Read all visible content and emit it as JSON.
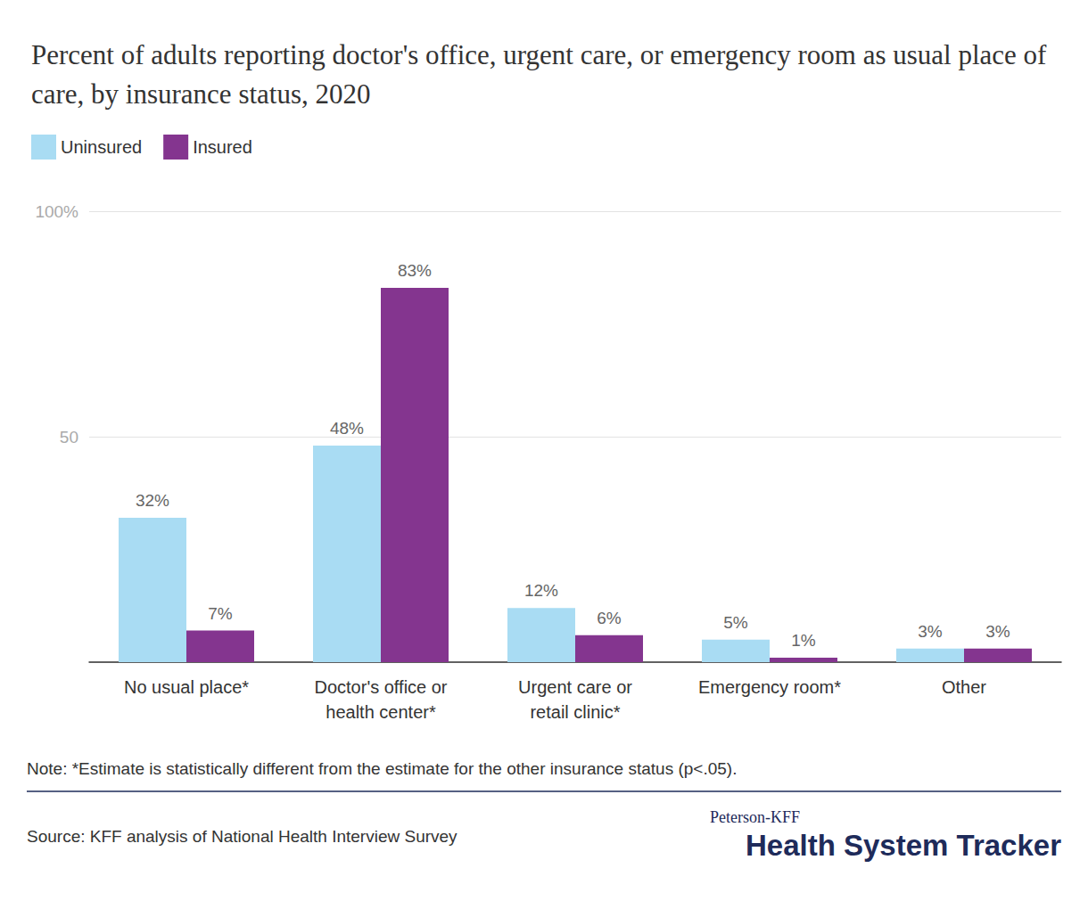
{
  "chart_data": {
    "type": "bar",
    "title": "Percent of adults reporting doctor's office, urgent care, or emergency room as usual place of care, by insurance status, 2020",
    "categories": [
      "No usual place*",
      "Doctor's office or\nhealth center*",
      "Urgent care or\nretail clinic*",
      "Emergency room*",
      "Other"
    ],
    "series": [
      {
        "name": "Uninsured",
        "color": "#a9dcf3",
        "values": [
          32,
          48,
          12,
          5,
          3
        ],
        "value_labels": [
          "32%",
          "48%",
          "12%",
          "5%",
          "3%"
        ]
      },
      {
        "name": "Insured",
        "color": "#84358f",
        "values": [
          7,
          83,
          6,
          1,
          3
        ],
        "value_labels": [
          "7%",
          "83%",
          "6%",
          "1%",
          "3%"
        ]
      }
    ],
    "ylim": [
      0,
      100
    ],
    "yticks": [
      50,
      {
        "value": 100,
        "label": "100%"
      }
    ],
    "grid": true,
    "legend": "top-left",
    "data_labels": true,
    "note": "Note: *Estimate is statistically different from the estimate for the other insurance status (p<.05).",
    "source": "Source: KFF analysis of National Health Interview Survey",
    "credit": [
      "Peterson-KFF",
      "Health System Tracker"
    ]
  }
}
